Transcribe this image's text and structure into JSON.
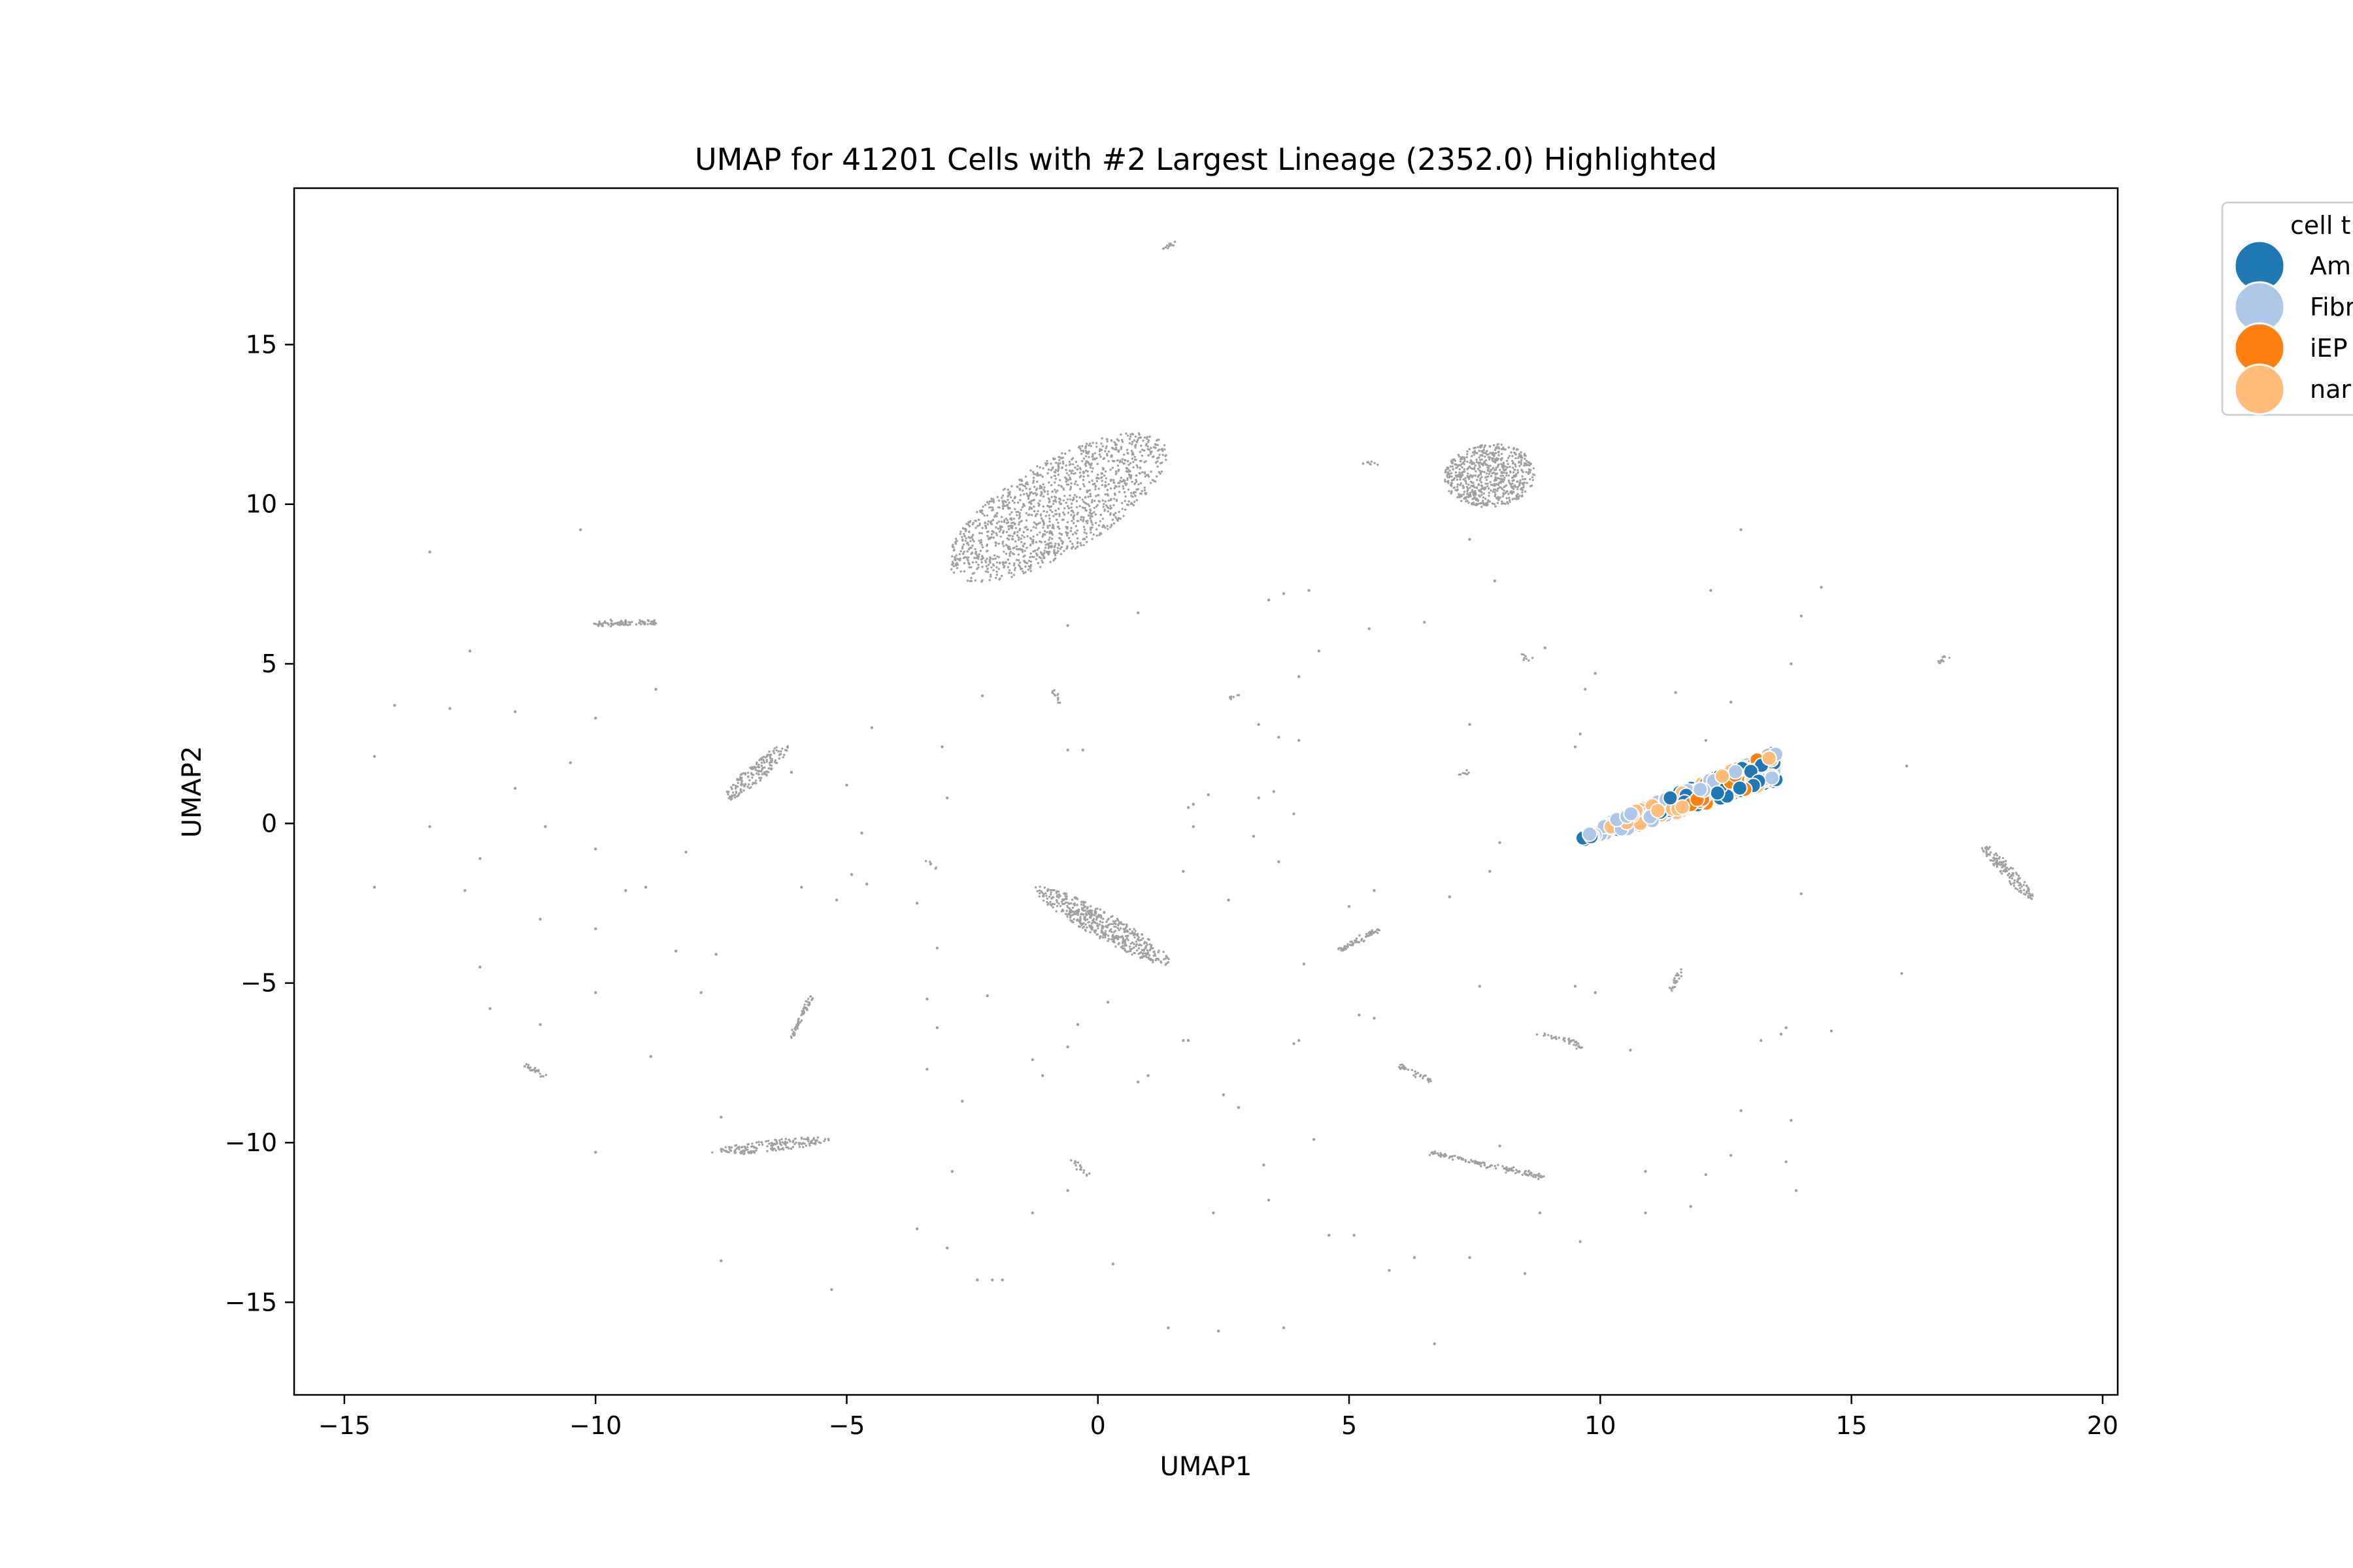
{
  "chart_data": {
    "type": "scatter",
    "title": "UMAP for 41201 Cells with #2 Largest Lineage (2352.0) Highlighted",
    "xlabel": "UMAP1",
    "ylabel": "UMAP2",
    "xlim": [
      -16.0,
      20.3
    ],
    "ylim": [
      -17.9,
      19.9
    ],
    "xticks": [
      -15,
      -10,
      -5,
      0,
      5,
      10,
      15,
      20
    ],
    "xtick_labels": [
      "−15",
      "−10",
      "−5",
      "0",
      "5",
      "10",
      "15",
      "20"
    ],
    "yticks": [
      -15,
      -10,
      -5,
      0,
      5,
      10,
      15
    ],
    "ytick_labels": [
      "−15",
      "−10",
      "−5",
      "0",
      "5",
      "10",
      "15"
    ],
    "grid": false,
    "background": {
      "color": "#a0a0a0",
      "clusters": [
        {
          "shape": "blob",
          "center": [
            -0.8,
            9.9
          ],
          "length": 5.9,
          "width": 2.4,
          "angle": 48,
          "n": 1400
        },
        {
          "shape": "blob",
          "center": [
            7.8,
            10.9
          ],
          "length": 2.0,
          "width": 1.8,
          "angle": 75,
          "n": 650
        },
        {
          "shape": "blob",
          "center": [
            0.1,
            -3.2
          ],
          "length": 3.6,
          "width": 0.7,
          "angle": -42,
          "n": 500
        },
        {
          "shape": "blob",
          "center": [
            -6.8,
            1.6
          ],
          "length": 2.1,
          "width": 0.45,
          "angle": 55,
          "n": 180
        },
        {
          "shape": "blob",
          "center": [
            -6.5,
            -10.1
          ],
          "length": 2.4,
          "width": 0.35,
          "angle": 10,
          "n": 170
        },
        {
          "shape": "blob",
          "center": [
            18.1,
            -1.5
          ],
          "length": 2.0,
          "width": 0.3,
          "angle": -60,
          "n": 140
        },
        {
          "shape": "line",
          "from": [
            6.6,
            -10.3
          ],
          "to": [
            8.9,
            -11.1
          ],
          "n": 130
        },
        {
          "shape": "line",
          "from": [
            4.8,
            -4.0
          ],
          "to": [
            5.6,
            -3.3
          ],
          "n": 70
        },
        {
          "shape": "line",
          "from": [
            -10.0,
            6.25
          ],
          "to": [
            -8.8,
            6.3
          ],
          "n": 80
        },
        {
          "shape": "line",
          "from": [
            -6.1,
            -6.7
          ],
          "to": [
            -5.7,
            -5.4
          ],
          "n": 60
        },
        {
          "shape": "line",
          "from": [
            -11.4,
            -7.6
          ],
          "to": [
            -11.0,
            -7.9
          ],
          "n": 25
        },
        {
          "shape": "line",
          "from": [
            6.0,
            -7.6
          ],
          "to": [
            6.7,
            -8.1
          ],
          "n": 35
        },
        {
          "shape": "line",
          "from": [
            8.8,
            -6.6
          ],
          "to": [
            9.6,
            -6.9
          ],
          "n": 35
        },
        {
          "shape": "line",
          "from": [
            11.4,
            -5.2
          ],
          "to": [
            11.6,
            -4.6
          ],
          "n": 25
        },
        {
          "shape": "line",
          "from": [
            -0.5,
            -10.6
          ],
          "to": [
            -0.2,
            -11.0
          ],
          "n": 18
        },
        {
          "shape": "line",
          "from": [
            1.3,
            18.0
          ],
          "to": [
            1.5,
            18.2
          ],
          "n": 14
        },
        {
          "shape": "line",
          "from": [
            16.7,
            5.0
          ],
          "to": [
            16.9,
            5.2
          ],
          "n": 12
        },
        {
          "shape": "line",
          "from": [
            -0.9,
            4.2
          ],
          "to": [
            -0.8,
            3.8
          ],
          "n": 14
        },
        {
          "shape": "line",
          "from": [
            5.3,
            11.3
          ],
          "to": [
            5.6,
            11.25
          ],
          "n": 10
        },
        {
          "shape": "line",
          "from": [
            7.2,
            1.5
          ],
          "to": [
            7.35,
            1.6
          ],
          "n": 8
        },
        {
          "shape": "line",
          "from": [
            8.4,
            5.3
          ],
          "to": [
            8.6,
            5.1
          ],
          "n": 8
        },
        {
          "shape": "line",
          "from": [
            9.6,
            -7.0
          ],
          "to": [
            9.7,
            -7.1
          ],
          "n": 6
        },
        {
          "shape": "line",
          "from": [
            2.6,
            3.9
          ],
          "to": [
            2.8,
            4.0
          ],
          "n": 8
        },
        {
          "shape": "line",
          "from": [
            -7.2,
            -10.4
          ],
          "to": [
            -6.9,
            -10.3
          ],
          "n": 6
        },
        {
          "shape": "line",
          "from": [
            -3.4,
            -1.2
          ],
          "to": [
            -3.2,
            -1.4
          ],
          "n": 6
        }
      ],
      "sparse_points": [
        [
          -13.3,
          8.5
        ],
        [
          -10.3,
          9.2
        ],
        [
          -12.5,
          5.4
        ],
        [
          -14.0,
          3.7
        ],
        [
          -12.9,
          3.6
        ],
        [
          -11.6,
          3.5
        ],
        [
          -10.0,
          3.3
        ],
        [
          -14.4,
          2.1
        ],
        [
          -11.6,
          1.1
        ],
        [
          -10.5,
          1.9
        ],
        [
          -13.3,
          -0.1
        ],
        [
          -12.3,
          -1.1
        ],
        [
          -11.0,
          -0.1
        ],
        [
          -10.0,
          -0.8
        ],
        [
          -14.4,
          -2.0
        ],
        [
          -12.6,
          -2.1
        ],
        [
          -11.1,
          -3.0
        ],
        [
          -10.0,
          -3.3
        ],
        [
          -9.0,
          -2.0
        ],
        [
          -12.3,
          -4.5
        ],
        [
          -12.1,
          -5.8
        ],
        [
          -11.1,
          -6.3
        ],
        [
          -10.0,
          -5.3
        ],
        [
          -8.9,
          -7.3
        ],
        [
          -8.4,
          -4.0
        ],
        [
          -7.6,
          -4.1
        ],
        [
          -7.9,
          -5.3
        ],
        [
          -7.5,
          -9.2
        ],
        [
          -7.5,
          -13.7
        ],
        [
          -10.0,
          -10.3
        ],
        [
          -5.3,
          -14.6
        ],
        [
          -5.2,
          -2.4
        ],
        [
          -5.9,
          -2.0
        ],
        [
          -4.9,
          -1.6
        ],
        [
          -4.7,
          -0.3
        ],
        [
          -4.5,
          3.0
        ],
        [
          -3.1,
          2.4
        ],
        [
          -3.0,
          0.8
        ],
        [
          -3.6,
          -2.5
        ],
        [
          -3.2,
          -3.9
        ],
        [
          -3.4,
          -5.5
        ],
        [
          -3.2,
          -6.4
        ],
        [
          -2.2,
          -5.4
        ],
        [
          -3.4,
          -7.7
        ],
        [
          -2.7,
          -8.7
        ],
        [
          -1.3,
          -7.4
        ],
        [
          -2.9,
          -10.9
        ],
        [
          -3.6,
          -12.7
        ],
        [
          -3.0,
          -13.3
        ],
        [
          -2.4,
          -14.3
        ],
        [
          -2.1,
          -14.3
        ],
        [
          -1.9,
          -14.3
        ],
        [
          -1.3,
          -12.2
        ],
        [
          -0.4,
          -2.8
        ],
        [
          -0.4,
          -6.3
        ],
        [
          -0.6,
          -7.0
        ],
        [
          -0.6,
          -11.5
        ],
        [
          -0.3,
          2.3
        ],
        [
          -0.6,
          2.3
        ],
        [
          -0.6,
          6.2
        ],
        [
          0.8,
          6.6
        ],
        [
          0.2,
          -5.6
        ],
        [
          0.8,
          -8.1
        ],
        [
          1.0,
          -7.9
        ],
        [
          0.3,
          -13.8
        ],
        [
          1.4,
          -15.8
        ],
        [
          2.4,
          -15.9
        ],
        [
          3.7,
          -15.8
        ],
        [
          2.3,
          -12.2
        ],
        [
          2.8,
          -8.9
        ],
        [
          1.7,
          -6.8
        ],
        [
          1.8,
          -6.8
        ],
        [
          1.7,
          -1.5
        ],
        [
          1.8,
          0.5
        ],
        [
          1.9,
          0.6
        ],
        [
          1.9,
          -0.1
        ],
        [
          2.2,
          0.9
        ],
        [
          2.6,
          -2.4
        ],
        [
          2.5,
          -8.5
        ],
        [
          3.3,
          -10.7
        ],
        [
          3.4,
          -11.8
        ],
        [
          3.2,
          0.8
        ],
        [
          3.5,
          1.0
        ],
        [
          3.2,
          3.1
        ],
        [
          3.6,
          2.7
        ],
        [
          3.1,
          -0.4
        ],
        [
          3.6,
          -1.2
        ],
        [
          3.4,
          7.0
        ],
        [
          3.7,
          7.2
        ],
        [
          4.0,
          4.6
        ],
        [
          4.2,
          7.3
        ],
        [
          4.4,
          5.4
        ],
        [
          4.1,
          -4.4
        ],
        [
          3.9,
          -6.9
        ],
        [
          4.0,
          -6.8
        ],
        [
          4.3,
          -9.9
        ],
        [
          4.6,
          -12.9
        ],
        [
          5.0,
          -2.6
        ],
        [
          5.1,
          -12.9
        ],
        [
          5.2,
          -6.0
        ],
        [
          5.4,
          6.1
        ],
        [
          5.5,
          -2.1
        ],
        [
          5.5,
          -6.1
        ],
        [
          5.8,
          -14.0
        ],
        [
          6.3,
          -13.6
        ],
        [
          6.7,
          -16.3
        ],
        [
          6.5,
          6.3
        ],
        [
          7.0,
          -2.3
        ],
        [
          7.4,
          -13.6
        ],
        [
          7.4,
          3.1
        ],
        [
          7.9,
          7.6
        ],
        [
          7.4,
          8.9
        ],
        [
          7.6,
          -5.1
        ],
        [
          8.0,
          -10.1
        ],
        [
          8.5,
          -14.1
        ],
        [
          8.8,
          -12.2
        ],
        [
          8.9,
          5.5
        ],
        [
          9.6,
          -13.1
        ],
        [
          9.5,
          -5.1
        ],
        [
          9.9,
          -5.3
        ],
        [
          9.5,
          2.4
        ],
        [
          9.6,
          2.8
        ],
        [
          9.9,
          4.7
        ],
        [
          10.6,
          -7.1
        ],
        [
          10.9,
          -12.2
        ],
        [
          10.9,
          -10.9
        ],
        [
          11.5,
          4.1
        ],
        [
          11.8,
          -12.0
        ],
        [
          12.2,
          7.3
        ],
        [
          12.1,
          -11.0
        ],
        [
          12.6,
          -10.4
        ],
        [
          12.8,
          -9.0
        ],
        [
          13.2,
          -6.8
        ],
        [
          13.6,
          -6.6
        ],
        [
          13.7,
          -6.4
        ],
        [
          13.7,
          -10.6
        ],
        [
          13.8,
          -9.3
        ],
        [
          13.9,
          -11.5
        ],
        [
          14.0,
          -2.2
        ],
        [
          13.8,
          5.0
        ],
        [
          14.0,
          6.5
        ],
        [
          14.4,
          7.4
        ],
        [
          14.6,
          -6.5
        ],
        [
          16.1,
          1.8
        ],
        [
          16.0,
          -4.7
        ],
        [
          12.8,
          9.2
        ],
        [
          12.6,
          3.8
        ],
        [
          12.1,
          2.6
        ],
        [
          9.7,
          4.2
        ],
        [
          8.0,
          -0.6
        ],
        [
          7.8,
          -1.5
        ],
        [
          4.0,
          2.6
        ],
        [
          3.9,
          0.3
        ],
        [
          -1.1,
          -7.9
        ],
        [
          -2.3,
          4.0
        ],
        [
          -5.0,
          1.2
        ],
        [
          -4.6,
          -1.9
        ],
        [
          -8.2,
          -0.9
        ],
        [
          -9.4,
          -2.1
        ],
        [
          -6.1,
          1.6
        ],
        [
          -8.8,
          4.2
        ]
      ]
    },
    "highlight": {
      "lineage_size": 2352.0,
      "band": {
        "from": [
          9.6,
          -0.5
        ],
        "to": [
          13.5,
          1.8
        ],
        "width": 0.9
      }
    },
    "series": [
      {
        "name": "Ambiguous",
        "color": "#1f77b4",
        "n": 160
      },
      {
        "name": "Fibroblast",
        "color": "#aec7e8",
        "n": 200
      },
      {
        "name": "iEP",
        "color": "#ff7f0e",
        "n": 100
      },
      {
        "name": "nan",
        "color": "#ffbb78",
        "n": 200
      }
    ],
    "legend": {
      "title": "cell type",
      "title_visible": "cell t",
      "entries_visible": [
        "Am",
        "Fibr",
        "iEP",
        "nar"
      ],
      "placement": "outside upper right (clipped)"
    }
  }
}
